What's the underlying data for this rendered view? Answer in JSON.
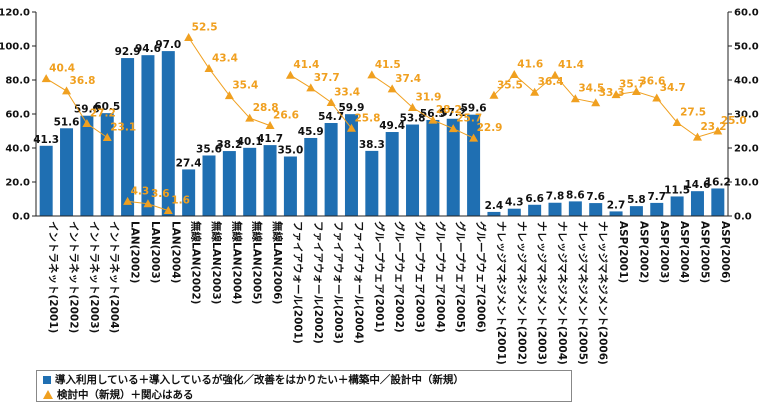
{
  "chart_data": {
    "type": "bar+line",
    "categories": [
      "イントラネット(2001)",
      "イントラネット(2002)",
      "イントラネット(2003)",
      "イントラネット(2004)",
      "LAN(2002)",
      "LAN(2003)",
      "LAN(2004)",
      "無線LAN(2002)",
      "無線LAN(2003)",
      "無線LAN(2004)",
      "無線LAN(2005)",
      "無線LAN(2006)",
      "ファイアウォール(2001)",
      "ファイアウォール(2002)",
      "ファイアウォール(2003)",
      "ファイアウォール(2004)",
      "グループウェア(2001)",
      "グループウェア(2002)",
      "グループウェア(2003)",
      "グループウェア(2004)",
      "グループウェア(2005)",
      "グループウェア(2006)",
      "ナレッジマネジメント(2001)",
      "ナレッジマネジメント(2002)",
      "ナレッジマネジメント(2003)",
      "ナレッジマネジメント(2004)",
      "ナレッジマネジメント(2005)",
      "ナレッジマネジメント(2006)",
      "ASP(2001)",
      "ASP(2002)",
      "ASP(2003)",
      "ASP(2004)",
      "ASP(2005)",
      "ASP(2006)"
    ],
    "series": [
      {
        "name": "導入利用している＋導入しているが強化／改善をはかりたい＋構築中／設計中（新規）",
        "type": "bar",
        "axis": "left",
        "color": "#1f6fb2",
        "values": [
          41.3,
          51.6,
          59.0,
          60.5,
          92.9,
          94.6,
          97.0,
          27.4,
          35.6,
          38.2,
          40.1,
          41.7,
          35.0,
          45.9,
          54.7,
          59.9,
          38.3,
          49.4,
          53.8,
          56.5,
          57.2,
          59.6,
          2.4,
          4.3,
          6.6,
          7.8,
          8.6,
          7.6,
          2.7,
          5.8,
          7.7,
          11.5,
          14.6,
          16.2
        ],
        "labels": [
          "41.3",
          "51.6",
          "59.0",
          "60.5",
          "92.9",
          "94.6",
          "97.0",
          "27.4",
          "35.6",
          "38.2",
          "40.1",
          "41.7",
          "35.0",
          "45.9",
          "54.7",
          "59.9",
          "38.3",
          "49.4",
          "53.8",
          "56.5",
          "57.2",
          "59.6",
          "2.4",
          "4.3",
          "6.6",
          "7.8",
          "8.6",
          "7.6",
          "2.7",
          "5.8",
          "7.7",
          "11.5",
          "14.6",
          "16.2"
        ]
      },
      {
        "name": "検討中（新規）＋関心はある",
        "type": "line",
        "axis": "right",
        "color": "#f0a020",
        "groups": [
          [
            0,
            3
          ],
          [
            4,
            6
          ],
          [
            7,
            11
          ],
          [
            12,
            15
          ],
          [
            16,
            21
          ],
          [
            22,
            27
          ],
          [
            28,
            33
          ]
        ],
        "values": [
          40.4,
          36.8,
          27.2,
          23.1,
          4.3,
          3.6,
          1.6,
          52.5,
          43.4,
          35.4,
          28.8,
          26.6,
          41.4,
          37.7,
          33.4,
          25.8,
          41.5,
          37.4,
          31.9,
          28.2,
          25.7,
          22.9,
          35.5,
          41.6,
          36.4,
          41.4,
          34.5,
          33.3,
          35.7,
          36.6,
          34.7,
          27.5,
          23.2,
          25.0
        ],
        "labels": [
          "40.4",
          "36.8",
          "27.2",
          "23.1",
          "4.3",
          "3.6",
          "1.6",
          "52.5",
          "43.4",
          "35.4",
          "28.8",
          "26.6",
          "41.4",
          "37.7",
          "33.4",
          "25.8",
          "41.5",
          "37.4",
          "31.9",
          "28.2",
          "25.7",
          "22.9",
          "35.5",
          "41.6",
          "36.4",
          "41.4",
          "34.5",
          "33.3",
          "35.7",
          "36.6",
          "34.7",
          "27.5",
          "23.2",
          "25.0"
        ]
      }
    ],
    "y_left": {
      "min": 0,
      "max": 120,
      "ticks": [
        "0.0",
        "20.0",
        "40.0",
        "60.0",
        "80.0",
        "100.0",
        "120.0"
      ]
    },
    "y_right": {
      "min": 0,
      "max": 60,
      "ticks": [
        "0.0",
        "10.0",
        "20.0",
        "30.0",
        "40.0",
        "50.0",
        "60.0"
      ]
    },
    "grid": false,
    "legend_position": "bottom-left"
  }
}
